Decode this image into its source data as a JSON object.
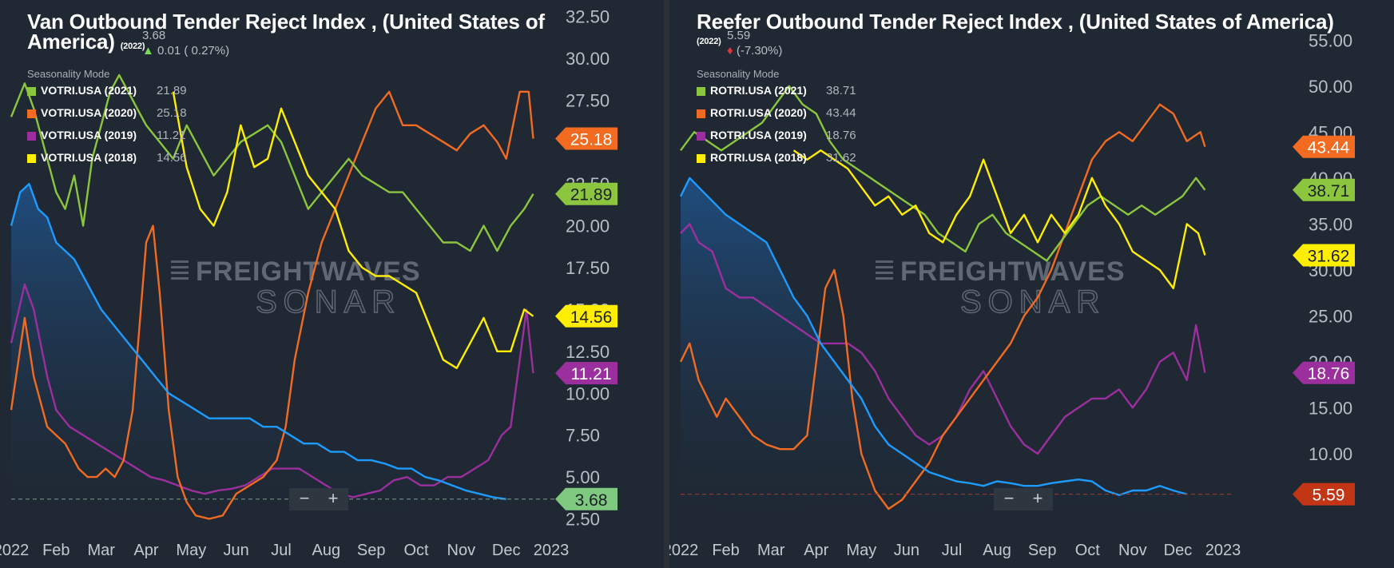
{
  "colors": {
    "y2021": "#8cc63f",
    "y2020": "#f26b21",
    "y2019": "#9b2f9e",
    "y2018": "#ffee00",
    "current": "#1e9bff",
    "current_fill_top": "#1f4f82",
    "latest_green": "#7ec87f",
    "latest_red": "#c23616"
  },
  "left": {
    "title_line1": "Van Outbound Tender Reject Index , (United States of",
    "title_line2": "America)",
    "title_year": "(2022)",
    "latest_value": "3.68",
    "change_arrow": "▲",
    "change_text": "0.01 ( 0.27%)",
    "seasonality_label": "Seasonality Mode",
    "legend": [
      {
        "key": "y2021",
        "name": "VOTRI.USA (2021)",
        "value": "21.89"
      },
      {
        "key": "y2020",
        "name": "VOTRI.USA (2020)",
        "value": "25.18"
      },
      {
        "key": "y2019",
        "name": "VOTRI.USA (2019)",
        "value": "11.21"
      },
      {
        "key": "y2018",
        "name": "VOTRI.USA (2018)",
        "value": "14.56"
      }
    ],
    "zoom_minus": "−",
    "zoom_plus": "+",
    "watermark_top": "FREIGHTWAVES",
    "watermark_bottom": "SONAR"
  },
  "right": {
    "title_line1": "Reefer Outbound Tender Reject Index , (United States of America)",
    "title_year": "(2022)",
    "latest_value": "5.59",
    "change_arrow": "♦",
    "change_text": "(-7.30%)",
    "seasonality_label": "Seasonality Mode",
    "legend": [
      {
        "key": "y2021",
        "name": "ROTRI.USA (2021)",
        "value": "38.71"
      },
      {
        "key": "y2020",
        "name": "ROTRI.USA (2020)",
        "value": "43.44"
      },
      {
        "key": "y2019",
        "name": "ROTRI.USA (2019)",
        "value": "18.76"
      },
      {
        "key": "y2018",
        "name": "ROTRI.USA (2018)",
        "value": "31.62"
      }
    ],
    "zoom_minus": "−",
    "zoom_plus": "+",
    "watermark_top": "FREIGHTWAVES",
    "watermark_bottom": "SONAR"
  },
  "chart_data": [
    {
      "type": "line",
      "title": "Van Outbound Tender Reject Index , (United States of America)",
      "xlabel": "",
      "ylabel": "",
      "x_ticks": [
        "2022",
        "Feb",
        "Mar",
        "Apr",
        "May",
        "Jun",
        "Jul",
        "Aug",
        "Sep",
        "Oct",
        "Nov",
        "Dec",
        "2023"
      ],
      "x_range_months": [
        0,
        12
      ],
      "ylim": [
        2.0,
        33.0
      ],
      "y_ticks": [
        "2.50",
        "5.00",
        "7.50",
        "10.00",
        "12.50",
        "15.00",
        "17.50",
        "20.00",
        "22.50",
        "25.00",
        "27.50",
        "30.00",
        "32.50"
      ],
      "y_tick_values": [
        2.5,
        5,
        7.5,
        10,
        12.5,
        15,
        17.5,
        20,
        22.5,
        25,
        27.5,
        30,
        32.5
      ],
      "series": [
        {
          "key": "y2021",
          "name": "VOTRI.USA (2021)",
          "latest_label": "21.89",
          "x": [
            0,
            0.3,
            0.5,
            0.8,
            1.0,
            1.2,
            1.4,
            1.6,
            1.8,
            2.0,
            2.2,
            2.4,
            2.6,
            2.8,
            3.0,
            3.3,
            3.6,
            3.9,
            4.2,
            4.5,
            4.8,
            5.1,
            5.4,
            5.7,
            6.0,
            6.3,
            6.6,
            6.9,
            7.2,
            7.5,
            7.8,
            8.1,
            8.4,
            8.7,
            9.0,
            9.3,
            9.6,
            9.9,
            10.2,
            10.5,
            10.8,
            11.1,
            11.4,
            11.6
          ],
          "values": [
            26.5,
            28.5,
            27,
            24,
            22,
            21,
            23,
            20,
            24,
            26,
            28,
            29,
            28,
            27,
            26,
            25,
            24,
            26,
            24.5,
            23,
            24,
            25,
            25.5,
            26,
            25,
            23,
            21,
            22,
            23,
            24,
            23,
            22.5,
            22,
            22,
            21,
            20,
            19,
            19,
            18.5,
            20,
            18.5,
            20,
            21,
            21.9
          ]
        },
        {
          "key": "y2020",
          "name": "VOTRI.USA (2020)",
          "latest_label": "25.18",
          "x": [
            0,
            0.3,
            0.5,
            0.8,
            1.0,
            1.2,
            1.5,
            1.7,
            1.9,
            2.1,
            2.3,
            2.5,
            2.7,
            2.85,
            3.0,
            3.15,
            3.3,
            3.5,
            3.7,
            3.9,
            4.1,
            4.4,
            4.7,
            5.0,
            5.3,
            5.6,
            5.9,
            6.1,
            6.3,
            6.6,
            6.9,
            7.2,
            7.5,
            7.8,
            8.1,
            8.4,
            8.7,
            9.0,
            9.3,
            9.6,
            9.9,
            10.2,
            10.5,
            10.8,
            11.0,
            11.3,
            11.5,
            11.6
          ],
          "values": [
            9,
            14.5,
            11,
            8,
            7.5,
            7,
            5.5,
            5,
            5,
            5.5,
            5,
            6,
            9,
            14,
            19,
            20,
            16,
            9,
            5,
            3.5,
            2.7,
            2.5,
            2.7,
            4,
            4.5,
            5,
            6,
            8,
            12,
            16,
            19,
            21,
            23,
            25,
            27,
            28,
            26,
            26,
            25.5,
            25,
            24.5,
            25.5,
            26,
            25,
            24,
            28,
            28,
            25.2
          ]
        },
        {
          "key": "y2019",
          "name": "VOTRI.USA (2019)",
          "latest_label": "11.21",
          "x": [
            0,
            0.3,
            0.5,
            0.8,
            1.0,
            1.3,
            1.6,
            1.9,
            2.2,
            2.5,
            2.8,
            3.1,
            3.4,
            3.7,
            4.0,
            4.3,
            4.6,
            4.9,
            5.2,
            5.5,
            5.8,
            6.1,
            6.4,
            6.7,
            7.0,
            7.3,
            7.6,
            7.9,
            8.2,
            8.5,
            8.8,
            9.1,
            9.4,
            9.7,
            10.0,
            10.3,
            10.6,
            10.9,
            11.1,
            11.3,
            11.45,
            11.6
          ],
          "values": [
            13,
            16.5,
            15,
            11,
            9,
            8,
            7.5,
            7,
            6.5,
            6,
            5.5,
            5,
            4.8,
            4.5,
            4.2,
            4.0,
            4.2,
            4.3,
            4.5,
            5,
            5.5,
            5.5,
            5.5,
            5,
            4.5,
            4,
            3.8,
            4,
            4.2,
            4.8,
            5,
            4.5,
            4.5,
            5,
            5,
            5.5,
            6,
            7.5,
            8,
            12,
            15,
            11.2
          ]
        },
        {
          "key": "y2018",
          "name": "VOTRI.USA (2018)",
          "latest_label": "14.56",
          "x": [
            3.6,
            3.9,
            4.2,
            4.5,
            4.8,
            5.1,
            5.4,
            5.7,
            6.0,
            6.3,
            6.6,
            6.9,
            7.2,
            7.5,
            7.8,
            8.1,
            8.4,
            8.7,
            9.0,
            9.3,
            9.6,
            9.9,
            10.2,
            10.5,
            10.8,
            11.1,
            11.4,
            11.6
          ],
          "values": [
            28,
            23.5,
            21,
            20,
            22,
            26,
            23.5,
            24,
            27,
            25,
            23,
            22,
            21,
            18.5,
            17.5,
            17,
            17,
            16.5,
            16,
            14,
            12,
            11.5,
            13,
            14.5,
            12.5,
            12.5,
            15,
            14.6
          ]
        },
        {
          "key": "current",
          "name": "VOTRI.USA (2022)",
          "latest_label": "3.68",
          "x": [
            0,
            0.2,
            0.4,
            0.6,
            0.8,
            1.0,
            1.2,
            1.4,
            1.6,
            1.8,
            2.0,
            2.3,
            2.6,
            2.9,
            3.2,
            3.5,
            3.8,
            4.1,
            4.4,
            4.7,
            5.0,
            5.3,
            5.6,
            5.9,
            6.2,
            6.5,
            6.8,
            7.1,
            7.4,
            7.7,
            8.0,
            8.3,
            8.6,
            8.9,
            9.2,
            9.5,
            9.8,
            10.1,
            10.4,
            10.7,
            11.0
          ],
          "values": [
            20,
            22,
            22.5,
            21,
            20.5,
            19,
            18.5,
            18,
            17,
            16,
            15,
            14,
            13,
            12,
            11,
            10,
            9.5,
            9,
            8.5,
            8.5,
            8.5,
            8.5,
            8,
            8,
            7.5,
            7,
            7,
            6.5,
            6.5,
            6,
            6,
            5.8,
            5.5,
            5.5,
            5,
            4.8,
            4.5,
            4.2,
            4.0,
            3.8,
            3.68
          ]
        }
      ]
    },
    {
      "type": "line",
      "title": "Reefer Outbound Tender Reject Index , (United States of America)",
      "xlabel": "",
      "ylabel": "",
      "x_ticks": [
        "2022",
        "Feb",
        "Mar",
        "Apr",
        "May",
        "Jun",
        "Jul",
        "Aug",
        "Sep",
        "Oct",
        "Nov",
        "Dec",
        "2023"
      ],
      "x_range_months": [
        0,
        12
      ],
      "ylim": [
        2.0,
        58.5
      ],
      "y_ticks": [
        "10.00",
        "15.00",
        "20.00",
        "25.00",
        "30.00",
        "35.00",
        "40.00",
        "45.00",
        "50.00",
        "55.00"
      ],
      "y_tick_values": [
        10,
        15,
        20,
        25,
        30,
        35,
        40,
        45,
        50,
        55
      ],
      "series": [
        {
          "key": "y2021",
          "name": "ROTRI.USA (2021)",
          "latest_label": "38.71",
          "x": [
            0,
            0.3,
            0.6,
            0.9,
            1.2,
            1.5,
            1.8,
            2.1,
            2.4,
            2.7,
            3.0,
            3.3,
            3.6,
            3.9,
            4.2,
            4.5,
            4.8,
            5.1,
            5.4,
            5.7,
            6.0,
            6.3,
            6.6,
            6.9,
            7.2,
            7.5,
            7.8,
            8.1,
            8.4,
            8.7,
            9.0,
            9.3,
            9.6,
            9.9,
            10.2,
            10.5,
            10.8,
            11.1,
            11.4,
            11.6
          ],
          "values": [
            43,
            45,
            44,
            43,
            44,
            45,
            46,
            48,
            50,
            48,
            47,
            44,
            42,
            41,
            40,
            39,
            38,
            37,
            36,
            34,
            33,
            32,
            35,
            36,
            34,
            33,
            32,
            31,
            33,
            35,
            37,
            38,
            37,
            36,
            37,
            36,
            37,
            38,
            40,
            38.7
          ]
        },
        {
          "key": "y2020",
          "name": "ROTRI.USA (2020)",
          "latest_label": "43.44",
          "x": [
            0,
            0.2,
            0.4,
            0.6,
            0.8,
            1.0,
            1.3,
            1.6,
            1.9,
            2.2,
            2.5,
            2.8,
            3.0,
            3.2,
            3.4,
            3.6,
            3.8,
            4.0,
            4.3,
            4.6,
            4.9,
            5.2,
            5.5,
            5.8,
            6.1,
            6.4,
            6.7,
            7.0,
            7.3,
            7.6,
            7.9,
            8.2,
            8.5,
            8.8,
            9.1,
            9.4,
            9.7,
            10.0,
            10.3,
            10.6,
            10.9,
            11.2,
            11.5,
            11.6
          ],
          "values": [
            20,
            22,
            18,
            16,
            14,
            16,
            14,
            12,
            11,
            10.5,
            10.5,
            12,
            20,
            28,
            30,
            25,
            16,
            10,
            6,
            4,
            5,
            7,
            9,
            12,
            14,
            16,
            18,
            20,
            22,
            25,
            27,
            30,
            34,
            38,
            42,
            44,
            45,
            44,
            46,
            48,
            47,
            44,
            45,
            43.4
          ]
        },
        {
          "key": "y2019",
          "name": "ROTRI.USA (2019)",
          "latest_label": "18.76",
          "x": [
            0,
            0.2,
            0.4,
            0.7,
            1.0,
            1.3,
            1.6,
            1.9,
            2.2,
            2.5,
            2.8,
            3.1,
            3.4,
            3.7,
            4.0,
            4.3,
            4.6,
            4.9,
            5.2,
            5.5,
            5.8,
            6.1,
            6.4,
            6.7,
            7.0,
            7.3,
            7.6,
            7.9,
            8.2,
            8.5,
            8.8,
            9.1,
            9.4,
            9.7,
            10.0,
            10.3,
            10.6,
            10.9,
            11.2,
            11.4,
            11.6
          ],
          "values": [
            34,
            35,
            33,
            32,
            28,
            27,
            27,
            26,
            25,
            24,
            23,
            22,
            22,
            22,
            21,
            19,
            16,
            14,
            12,
            11,
            12,
            14,
            17,
            19,
            16,
            13,
            11,
            10,
            12,
            14,
            15,
            16,
            16,
            17,
            15,
            17,
            20,
            21,
            18,
            24,
            18.8
          ]
        },
        {
          "key": "y2018",
          "name": "ROTRI.USA (2018)",
          "latest_label": "31.62",
          "x": [
            2.5,
            2.8,
            3.1,
            3.4,
            3.7,
            4.0,
            4.3,
            4.6,
            4.9,
            5.2,
            5.5,
            5.8,
            6.1,
            6.4,
            6.7,
            7.0,
            7.3,
            7.6,
            7.9,
            8.2,
            8.5,
            8.8,
            9.1,
            9.4,
            9.7,
            10.0,
            10.3,
            10.6,
            10.9,
            11.2,
            11.45,
            11.6
          ],
          "values": [
            43,
            42,
            43,
            42,
            41,
            39,
            37,
            38,
            36,
            37,
            34,
            33,
            36,
            38,
            42,
            38,
            34,
            36,
            33,
            36,
            34,
            36,
            40,
            37,
            35,
            32,
            31,
            30,
            28,
            35,
            34,
            31.6
          ]
        },
        {
          "key": "current",
          "name": "ROTRI.USA (2022)",
          "latest_label": "5.59",
          "x": [
            0,
            0.2,
            0.4,
            0.6,
            0.8,
            1.0,
            1.3,
            1.6,
            1.9,
            2.2,
            2.5,
            2.8,
            3.1,
            3.4,
            3.7,
            4.0,
            4.3,
            4.6,
            4.9,
            5.2,
            5.5,
            5.8,
            6.1,
            6.4,
            6.7,
            7.0,
            7.3,
            7.6,
            7.9,
            8.2,
            8.5,
            8.8,
            9.1,
            9.4,
            9.7,
            10.0,
            10.3,
            10.6,
            10.9,
            11.2
          ],
          "values": [
            38,
            40,
            39,
            38,
            37,
            36,
            35,
            34,
            33,
            30,
            27,
            25,
            22,
            20,
            18,
            16,
            13,
            11,
            10,
            9,
            8,
            7.5,
            7,
            6.8,
            6.5,
            7,
            6.8,
            6.5,
            6.5,
            6.8,
            7,
            7.2,
            7,
            6,
            5.5,
            6,
            6,
            6.5,
            6,
            5.6
          ]
        }
      ]
    }
  ]
}
